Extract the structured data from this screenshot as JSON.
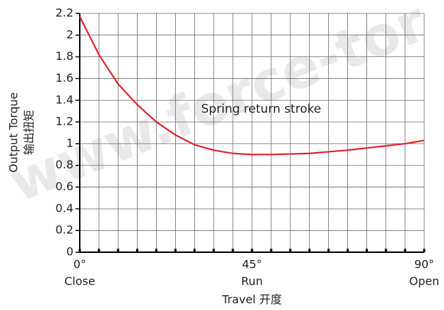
{
  "chart_data": {
    "type": "line",
    "watermark": "www.force-tor",
    "annotation": "Spring return stroke",
    "ylabel": [
      "Output Torque",
      "输出扭矩"
    ],
    "xlabel": "Travel 开度",
    "x": [
      0,
      5,
      10,
      15,
      20,
      25,
      30,
      35,
      40,
      45,
      50,
      55,
      60,
      65,
      70,
      75,
      80,
      85,
      90
    ],
    "series": [
      {
        "name": "Spring return stroke",
        "color": "#e0202a",
        "values": [
          2.17,
          1.82,
          1.55,
          1.36,
          1.2,
          1.08,
          0.99,
          0.94,
          0.91,
          0.9,
          0.9,
          0.905,
          0.91,
          0.925,
          0.94,
          0.96,
          0.98,
          1.0,
          1.03
        ]
      }
    ],
    "xlim": [
      0,
      90
    ],
    "xticks": [
      {
        "value": 0,
        "label": "0°"
      },
      {
        "value": 45,
        "label": "45°"
      },
      {
        "value": 90,
        "label": "90°"
      }
    ],
    "xtick_sublabels": [
      "Close",
      "Run",
      "Open"
    ],
    "xgrid_ticks": [
      0,
      5,
      10,
      15,
      20,
      25,
      30,
      35,
      40,
      45,
      50,
      55,
      60,
      65,
      70,
      75,
      80,
      85,
      90
    ],
    "ylim": [
      0,
      2.2
    ],
    "yticks": [
      0,
      0.2,
      0.4,
      0.6,
      0.8,
      1,
      1.2,
      1.4,
      1.6,
      1.8,
      2,
      2.2
    ],
    "grid": true
  }
}
